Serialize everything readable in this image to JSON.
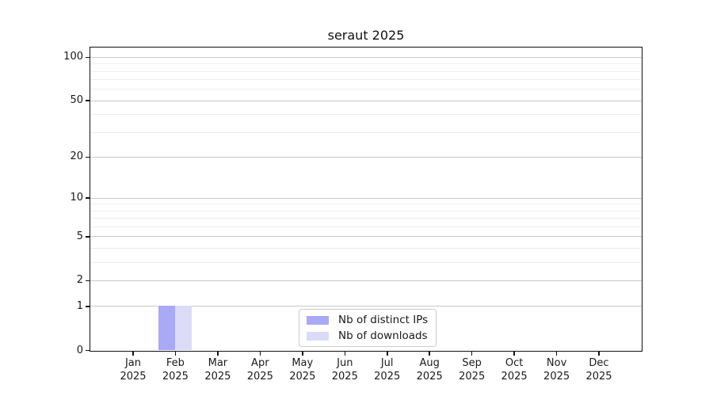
{
  "figure": {
    "background": "#ffffff"
  },
  "chart_data": {
    "type": "bar",
    "title": "seraut 2025",
    "categories": [
      {
        "month": "Jan",
        "year": "2025"
      },
      {
        "month": "Feb",
        "year": "2025"
      },
      {
        "month": "Mar",
        "year": "2025"
      },
      {
        "month": "Apr",
        "year": "2025"
      },
      {
        "month": "May",
        "year": "2025"
      },
      {
        "month": "Jun",
        "year": "2025"
      },
      {
        "month": "Jul",
        "year": "2025"
      },
      {
        "month": "Aug",
        "year": "2025"
      },
      {
        "month": "Sep",
        "year": "2025"
      },
      {
        "month": "Oct",
        "year": "2025"
      },
      {
        "month": "Nov",
        "year": "2025"
      },
      {
        "month": "Dec",
        "year": "2025"
      }
    ],
    "series": [
      {
        "name": "Nb of distinct IPs",
        "color": "#a9a9f5",
        "values": [
          0,
          1,
          0,
          0,
          0,
          0,
          0,
          0,
          0,
          0,
          0,
          0
        ]
      },
      {
        "name": "Nb of downloads",
        "color": "#dbdbf8",
        "values": [
          0,
          1,
          0,
          0,
          0,
          0,
          0,
          0,
          0,
          0,
          0,
          0
        ]
      }
    ],
    "xlabel": "",
    "ylabel": "",
    "yscale": "log1p",
    "ylim": [
      0,
      116
    ],
    "yticks": [
      0,
      1,
      2,
      5,
      10,
      20,
      50,
      100
    ],
    "minor_gridlines": [
      3,
      4,
      6,
      7,
      8,
      9,
      30,
      40,
      60,
      70,
      80,
      90
    ],
    "grid": "horizontal-major-and-minor",
    "legend_position": "bottom-center"
  },
  "colors": {
    "spine": "#111111",
    "major_grid": "#c9c9c9",
    "minor_grid": "#ededed",
    "legend_border": "#cccccc"
  }
}
